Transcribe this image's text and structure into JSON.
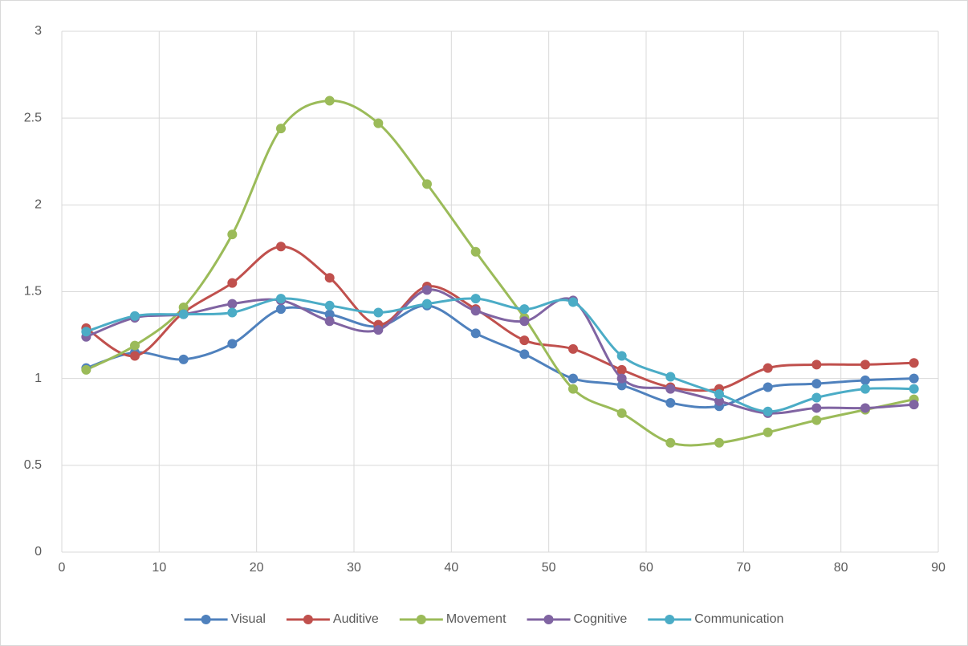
{
  "chart_data": {
    "type": "line",
    "x": [
      2.5,
      7.5,
      12.5,
      17.5,
      22.5,
      27.5,
      32.5,
      37.5,
      42.5,
      47.5,
      52.5,
      57.5,
      62.5,
      67.5,
      72.5,
      77.5,
      82.5,
      87.5
    ],
    "series": [
      {
        "name": "Visual",
        "color": "#4f81bd",
        "values": [
          1.06,
          1.15,
          1.11,
          1.2,
          1.4,
          1.37,
          1.3,
          1.42,
          1.26,
          1.14,
          1.0,
          0.96,
          0.86,
          0.84,
          0.95,
          0.97,
          0.99,
          1.0
        ]
      },
      {
        "name": "Auditive",
        "color": "#c0504d",
        "values": [
          1.29,
          1.13,
          1.38,
          1.55,
          1.76,
          1.58,
          1.31,
          1.53,
          1.4,
          1.22,
          1.17,
          1.05,
          0.95,
          0.94,
          1.06,
          1.08,
          1.08,
          1.09
        ]
      },
      {
        "name": "Movement",
        "color": "#9bbb59",
        "values": [
          1.05,
          1.19,
          1.41,
          1.83,
          2.44,
          2.6,
          2.47,
          2.12,
          1.73,
          1.35,
          0.94,
          0.8,
          0.63,
          0.63,
          0.69,
          0.76,
          0.82,
          0.88
        ]
      },
      {
        "name": "Cognitive",
        "color": "#8064a2",
        "values": [
          1.24,
          1.35,
          1.37,
          1.43,
          1.45,
          1.33,
          1.28,
          1.51,
          1.39,
          1.33,
          1.45,
          1.0,
          0.94,
          0.87,
          0.8,
          0.83,
          0.83,
          0.85
        ]
      },
      {
        "name": "Communication",
        "color": "#4bacc6",
        "values": [
          1.27,
          1.36,
          1.37,
          1.38,
          1.46,
          1.42,
          1.38,
          1.43,
          1.46,
          1.4,
          1.44,
          1.13,
          1.01,
          0.91,
          0.81,
          0.89,
          0.94,
          0.94
        ]
      }
    ],
    "xlim": [
      0,
      90
    ],
    "xticks": [
      0,
      10,
      20,
      30,
      40,
      50,
      60,
      70,
      80,
      90
    ],
    "ylim": [
      0,
      3
    ],
    "yticks": [
      0,
      0.5,
      1,
      1.5,
      2,
      2.5,
      3
    ],
    "grid": true,
    "smooth": true,
    "legend": "bottom"
  }
}
